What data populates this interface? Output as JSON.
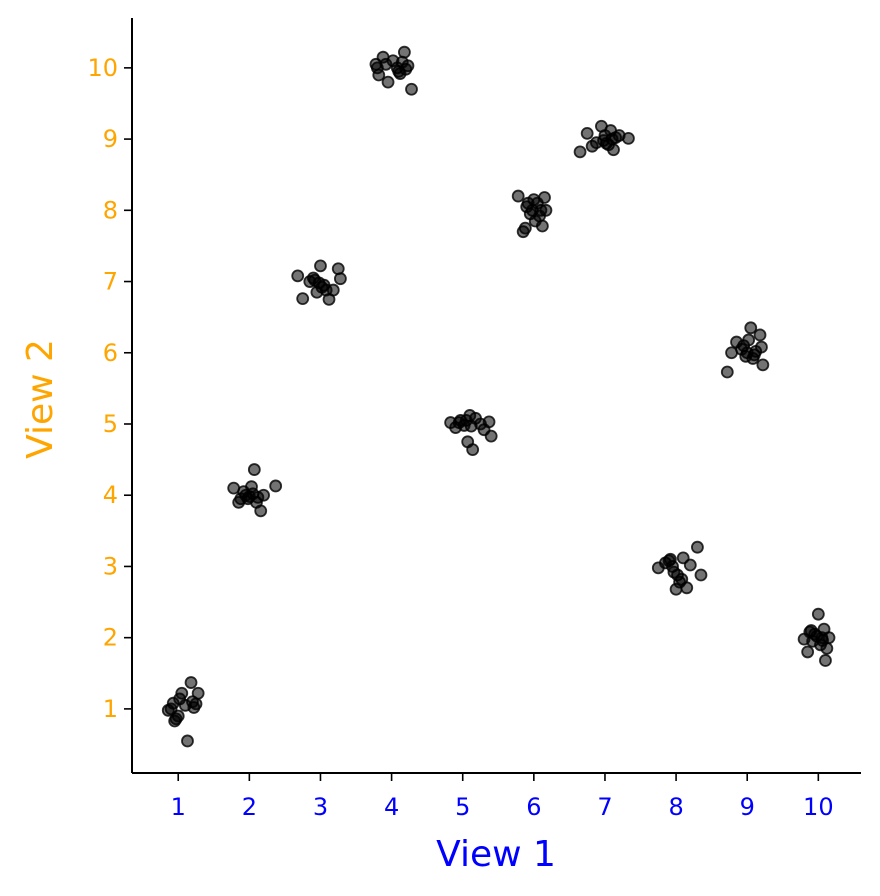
{
  "chart_data": {
    "type": "scatter",
    "xlabel": "View 1",
    "ylabel": "View 2",
    "xlim": [
      0.35,
      10.6
    ],
    "ylim": [
      0.1,
      10.7
    ],
    "x_ticks": [
      "1",
      "2",
      "3",
      "4",
      "5",
      "6",
      "7",
      "8",
      "9",
      "10"
    ],
    "y_ticks": [
      "1",
      "2",
      "3",
      "4",
      "5",
      "6",
      "7",
      "8",
      "9",
      "10"
    ],
    "grid": false,
    "colors": {
      "marker_fill": "#000000",
      "marker_opacity": 0.55,
      "marker_edge": "#000000",
      "xlabel_color": "#0000ff",
      "ylabel_color": "#ffa500",
      "xtick_color": "#0000ff",
      "ytick_color": "#ffa500",
      "axis_color": "#000000"
    },
    "series": [
      {
        "points": [
          [
            0.86,
            0.98
          ],
          [
            0.93,
            1.08
          ],
          [
            0.95,
            0.83
          ],
          [
            1.0,
            0.9
          ],
          [
            1.05,
            1.22
          ],
          [
            1.1,
            1.05
          ],
          [
            1.13,
            0.55
          ],
          [
            1.18,
            1.37
          ],
          [
            1.2,
            1.1
          ],
          [
            1.22,
            1.02
          ],
          [
            1.28,
            1.22
          ],
          [
            0.9,
            1.0
          ],
          [
            1.02,
            1.14
          ],
          [
            0.97,
            0.86
          ],
          [
            1.25,
            1.07
          ],
          [
            1.78,
            4.1
          ],
          [
            1.85,
            3.9
          ],
          [
            1.92,
            4.05
          ],
          [
            1.98,
            3.95
          ],
          [
            2.03,
            4.12
          ],
          [
            2.07,
            4.36
          ],
          [
            2.1,
            3.9
          ],
          [
            2.16,
            3.78
          ],
          [
            2.2,
            4.0
          ],
          [
            2.37,
            4.13
          ],
          [
            1.95,
            4.0
          ],
          [
            2.0,
            3.98
          ],
          [
            2.05,
            4.02
          ],
          [
            2.12,
            3.97
          ],
          [
            1.88,
            3.95
          ],
          [
            2.68,
            7.08
          ],
          [
            2.75,
            6.76
          ],
          [
            2.85,
            7.0
          ],
          [
            2.9,
            7.05
          ],
          [
            2.95,
            6.85
          ],
          [
            3.0,
            7.22
          ],
          [
            3.02,
            6.92
          ],
          [
            3.08,
            6.88
          ],
          [
            3.12,
            6.75
          ],
          [
            3.18,
            6.88
          ],
          [
            3.25,
            7.18
          ],
          [
            3.28,
            7.04
          ],
          [
            2.92,
            7.02
          ],
          [
            2.98,
            6.98
          ],
          [
            3.05,
            6.95
          ],
          [
            3.78,
            10.05
          ],
          [
            3.82,
            9.9
          ],
          [
            3.88,
            10.15
          ],
          [
            3.95,
            9.8
          ],
          [
            4.02,
            10.1
          ],
          [
            4.08,
            10.0
          ],
          [
            4.12,
            9.92
          ],
          [
            4.18,
            10.22
          ],
          [
            4.2,
            9.98
          ],
          [
            4.23,
            10.03
          ],
          [
            4.28,
            9.7
          ],
          [
            3.8,
            10.0
          ],
          [
            4.15,
            10.08
          ],
          [
            4.1,
            9.95
          ],
          [
            3.92,
            10.05
          ],
          [
            4.83,
            5.02
          ],
          [
            4.9,
            4.95
          ],
          [
            4.97,
            5.05
          ],
          [
            5.02,
            4.98
          ],
          [
            5.07,
            4.75
          ],
          [
            5.1,
            5.12
          ],
          [
            5.14,
            4.64
          ],
          [
            5.18,
            5.08
          ],
          [
            5.25,
            5.0
          ],
          [
            5.3,
            4.92
          ],
          [
            5.37,
            5.03
          ],
          [
            5.4,
            4.83
          ],
          [
            5.05,
            5.05
          ],
          [
            5.12,
            4.97
          ],
          [
            4.95,
            5.02
          ],
          [
            5.78,
            8.2
          ],
          [
            5.85,
            7.7
          ],
          [
            5.9,
            8.05
          ],
          [
            5.95,
            7.95
          ],
          [
            6.0,
            8.15
          ],
          [
            6.02,
            7.85
          ],
          [
            6.05,
            8.1
          ],
          [
            6.1,
            8.0
          ],
          [
            6.12,
            7.78
          ],
          [
            6.15,
            8.18
          ],
          [
            6.17,
            8.0
          ],
          [
            5.92,
            8.1
          ],
          [
            5.98,
            8.0
          ],
          [
            6.08,
            7.92
          ],
          [
            5.88,
            7.75
          ],
          [
            6.65,
            8.82
          ],
          [
            6.75,
            9.08
          ],
          [
            6.82,
            8.9
          ],
          [
            6.88,
            8.95
          ],
          [
            6.95,
            9.18
          ],
          [
            7.0,
            9.05
          ],
          [
            7.05,
            8.92
          ],
          [
            7.08,
            9.12
          ],
          [
            7.12,
            8.85
          ],
          [
            7.15,
            9.02
          ],
          [
            7.2,
            9.05
          ],
          [
            7.33,
            9.01
          ],
          [
            6.98,
            8.98
          ],
          [
            7.1,
            9.0
          ],
          [
            7.02,
            8.94
          ],
          [
            7.75,
            2.98
          ],
          [
            7.85,
            3.05
          ],
          [
            7.92,
            3.1
          ],
          [
            7.97,
            2.92
          ],
          [
            8.0,
            2.68
          ],
          [
            8.05,
            2.78
          ],
          [
            8.1,
            3.12
          ],
          [
            8.15,
            2.7
          ],
          [
            8.2,
            3.02
          ],
          [
            8.3,
            3.27
          ],
          [
            8.35,
            2.88
          ],
          [
            7.95,
            3.0
          ],
          [
            8.02,
            2.88
          ],
          [
            8.08,
            2.82
          ],
          [
            7.9,
            3.08
          ],
          [
            8.72,
            5.73
          ],
          [
            8.78,
            6.0
          ],
          [
            8.85,
            6.15
          ],
          [
            8.92,
            6.05
          ],
          [
            8.98,
            5.95
          ],
          [
            9.02,
            6.18
          ],
          [
            9.05,
            6.35
          ],
          [
            9.08,
            5.92
          ],
          [
            9.12,
            6.02
          ],
          [
            9.18,
            6.25
          ],
          [
            9.2,
            6.08
          ],
          [
            9.22,
            5.83
          ],
          [
            9.0,
            6.0
          ],
          [
            9.1,
            5.97
          ],
          [
            8.95,
            6.1
          ],
          [
            9.8,
            1.98
          ],
          [
            9.85,
            1.8
          ],
          [
            9.9,
            2.1
          ],
          [
            9.95,
            2.05
          ],
          [
            10.0,
            2.33
          ],
          [
            10.03,
            1.9
          ],
          [
            10.05,
            2.0
          ],
          [
            10.08,
            2.12
          ],
          [
            10.1,
            1.68
          ],
          [
            10.12,
            1.85
          ],
          [
            10.15,
            2.0
          ],
          [
            9.92,
            1.95
          ],
          [
            9.98,
            2.02
          ],
          [
            10.06,
            1.96
          ],
          [
            9.88,
            2.08
          ]
        ]
      }
    ]
  }
}
